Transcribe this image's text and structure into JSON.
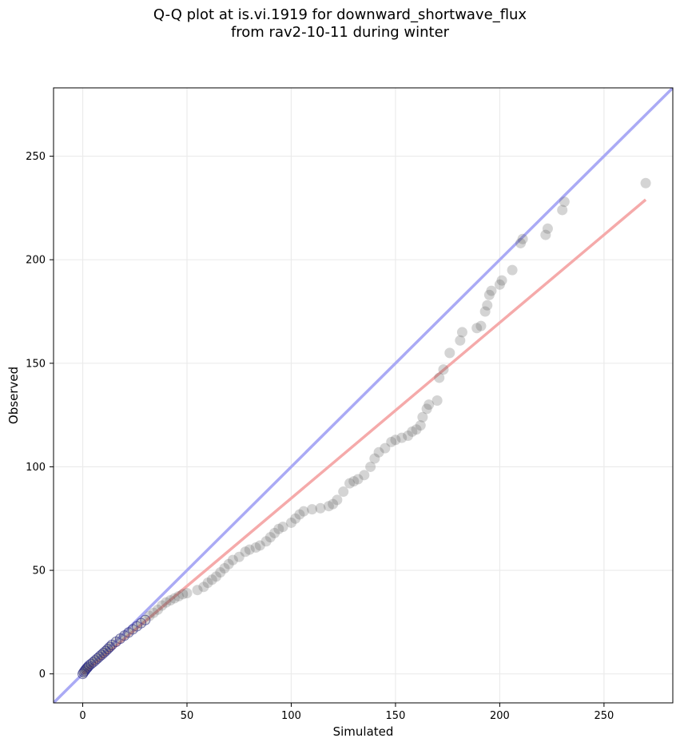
{
  "chart_data": {
    "type": "scatter",
    "title_line1": "Q-Q plot at is.vi.1919 for downward_shortwave_flux",
    "title_line2": "from rav2-10-11 during winter",
    "xlabel": "Simulated",
    "ylabel": "Observed",
    "xlim": [
      -14,
      283
    ],
    "ylim": [
      -14,
      283
    ],
    "xticks": [
      0,
      50,
      100,
      150,
      200,
      250
    ],
    "yticks": [
      0,
      50,
      100,
      150,
      200,
      250
    ],
    "grid": true,
    "reference_line": {
      "slope": 1,
      "intercept": 0,
      "color": "#aaaaf5"
    },
    "fit_line": {
      "x_start": 0,
      "x_end": 270,
      "y_start": 0,
      "y_end": 229,
      "color": "#f5aaaa"
    },
    "colors": {
      "points": "#555555",
      "dense_points": "#1a1a8a"
    },
    "points": [
      [
        0,
        0
      ],
      [
        0.5,
        0.8
      ],
      [
        1,
        1.5
      ],
      [
        1.5,
        2.2
      ],
      [
        2,
        2.8
      ],
      [
        2.5,
        3.3
      ],
      [
        3,
        4
      ],
      [
        4,
        4.8
      ],
      [
        5,
        5.6
      ],
      [
        6,
        6.5
      ],
      [
        7,
        7.4
      ],
      [
        8,
        8.3
      ],
      [
        9,
        9.2
      ],
      [
        10,
        10.1
      ],
      [
        11,
        11
      ],
      [
        12,
        12
      ],
      [
        13,
        13
      ],
      [
        14,
        14
      ],
      [
        16,
        15.5
      ],
      [
        18,
        17
      ],
      [
        20,
        18.5
      ],
      [
        22,
        20
      ],
      [
        24,
        21.5
      ],
      [
        26,
        23
      ],
      [
        28,
        24.5
      ],
      [
        30,
        26
      ],
      [
        32,
        28
      ],
      [
        34,
        29.5
      ],
      [
        36,
        31
      ],
      [
        38,
        33
      ],
      [
        40,
        34.5
      ],
      [
        42,
        35.5
      ],
      [
        44,
        36.5
      ],
      [
        46,
        37.5
      ],
      [
        48,
        38.5
      ],
      [
        50,
        39
      ],
      [
        55,
        40.5
      ],
      [
        58,
        42
      ],
      [
        60,
        44
      ],
      [
        62,
        45.5
      ],
      [
        64,
        47
      ],
      [
        66,
        49
      ],
      [
        68,
        51
      ],
      [
        70,
        53
      ],
      [
        72,
        55
      ],
      [
        75,
        56.5
      ],
      [
        78,
        59
      ],
      [
        80,
        60
      ],
      [
        83,
        61
      ],
      [
        85,
        62
      ],
      [
        88,
        64
      ],
      [
        90,
        66
      ],
      [
        92,
        68
      ],
      [
        94,
        70
      ],
      [
        96,
        71
      ],
      [
        100,
        73
      ],
      [
        102,
        75
      ],
      [
        104,
        77
      ],
      [
        106,
        78.5
      ],
      [
        110,
        79.5
      ],
      [
        114,
        80
      ],
      [
        118,
        81
      ],
      [
        120,
        82
      ],
      [
        122,
        84
      ],
      [
        125,
        88
      ],
      [
        128,
        92
      ],
      [
        130,
        93
      ],
      [
        132,
        94
      ],
      [
        135,
        96
      ],
      [
        138,
        100
      ],
      [
        140,
        104
      ],
      [
        142,
        107
      ],
      [
        145,
        109
      ],
      [
        148,
        112
      ],
      [
        150,
        113
      ],
      [
        153,
        114
      ],
      [
        156,
        115
      ],
      [
        158,
        117
      ],
      [
        160,
        118
      ],
      [
        162,
        120
      ],
      [
        163,
        124
      ],
      [
        165,
        128
      ],
      [
        166,
        130
      ],
      [
        170,
        132
      ],
      [
        171,
        143
      ],
      [
        173,
        147
      ],
      [
        176,
        155
      ],
      [
        181,
        161
      ],
      [
        182,
        165
      ],
      [
        189,
        167
      ],
      [
        191,
        168
      ],
      [
        193,
        175
      ],
      [
        194,
        178
      ],
      [
        195,
        183
      ],
      [
        196,
        185
      ],
      [
        200,
        188
      ],
      [
        201,
        190
      ],
      [
        206,
        195
      ],
      [
        210,
        208
      ],
      [
        211,
        210
      ],
      [
        222,
        212
      ],
      [
        223,
        215
      ],
      [
        230,
        224
      ],
      [
        231,
        228
      ],
      [
        270,
        237
      ]
    ]
  }
}
